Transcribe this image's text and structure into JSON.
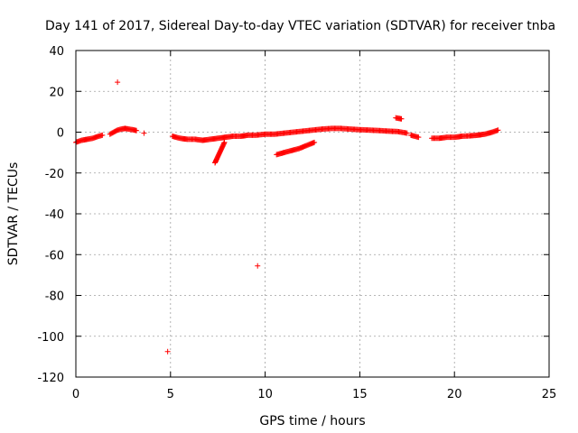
{
  "chart_data": {
    "type": "scatter",
    "title": "Day 141 of 2017, Sidereal Day-to-day VTEC variation (SDTVAR) for receiver tnba",
    "xlabel": "GPS time / hours",
    "ylabel": "SDTVAR / TECUs",
    "xlim": [
      0,
      25
    ],
    "ylim": [
      -120,
      40
    ],
    "xticks": [
      0,
      5,
      10,
      15,
      20,
      25
    ],
    "yticks": [
      -120,
      -100,
      -80,
      -60,
      -40,
      -20,
      0,
      20,
      40
    ],
    "xtick_labels": [
      "0",
      "5",
      "10",
      "15",
      "20",
      "25"
    ],
    "ytick_labels": [
      "-120",
      "-100",
      "-80",
      "-60",
      "-40",
      "-20",
      "0",
      "20",
      "40"
    ],
    "grid": true,
    "marker": "+",
    "color": "#ff0000",
    "segments": [
      {
        "x": [
          0.0,
          0.3,
          0.6,
          0.9,
          1.2,
          1.4
        ],
        "y": [
          -5,
          -4,
          -3.5,
          -3,
          -2,
          -1.5
        ]
      },
      {
        "x": [
          1.8,
          2.0,
          2.2,
          2.4,
          2.6,
          2.8,
          3.0,
          3.2
        ],
        "y": [
          -1,
          0,
          1,
          1.5,
          1.8,
          1.5,
          1.2,
          0.8
        ]
      },
      {
        "x": [
          3.6
        ],
        "y": [
          -0.5
        ]
      },
      {
        "x": [
          2.2
        ],
        "y": [
          24.5
        ]
      },
      {
        "x": [
          5.1,
          5.5,
          5.9,
          6.3,
          6.7,
          7.1,
          7.5,
          7.9,
          8.3,
          8.7,
          9.1,
          9.5,
          10.0,
          10.5,
          11.0,
          11.5,
          12.0,
          12.5,
          13.0,
          13.5,
          14.0,
          14.5,
          15.0,
          15.5,
          16.0,
          16.5,
          17.0,
          17.5
        ],
        "y": [
          -2,
          -3,
          -3.5,
          -3.5,
          -4,
          -3.5,
          -3,
          -2.5,
          -2,
          -2,
          -1.5,
          -1.5,
          -1,
          -1,
          -0.5,
          0,
          0.5,
          1,
          1.5,
          1.8,
          1.8,
          1.5,
          1.2,
          1,
          0.8,
          0.5,
          0.3,
          -0.5
        ]
      },
      {
        "x": [
          7.35,
          7.5,
          7.7,
          7.85
        ],
        "y": [
          -15,
          -12,
          -8,
          -5
        ]
      },
      {
        "x": [
          10.6,
          11.0,
          11.4,
          11.8,
          12.2,
          12.6
        ],
        "y": [
          -11,
          -10,
          -9,
          -8,
          -6.5,
          -5
        ]
      },
      {
        "x": [
          16.9,
          17.2
        ],
        "y": [
          7,
          6.5
        ]
      },
      {
        "x": [
          17.7,
          18.1
        ],
        "y": [
          -1.5,
          -2.5
        ]
      },
      {
        "x": [
          18.8,
          19.2,
          19.6,
          20.0,
          20.4,
          20.8,
          21.2,
          21.6,
          22.0,
          22.3
        ],
        "y": [
          -3,
          -3,
          -2.5,
          -2.5,
          -2,
          -1.8,
          -1.5,
          -1,
          0,
          1
        ]
      },
      {
        "x": [
          4.85
        ],
        "y": [
          -107.5
        ]
      },
      {
        "x": [
          9.6
        ],
        "y": [
          -65.5
        ]
      }
    ]
  }
}
